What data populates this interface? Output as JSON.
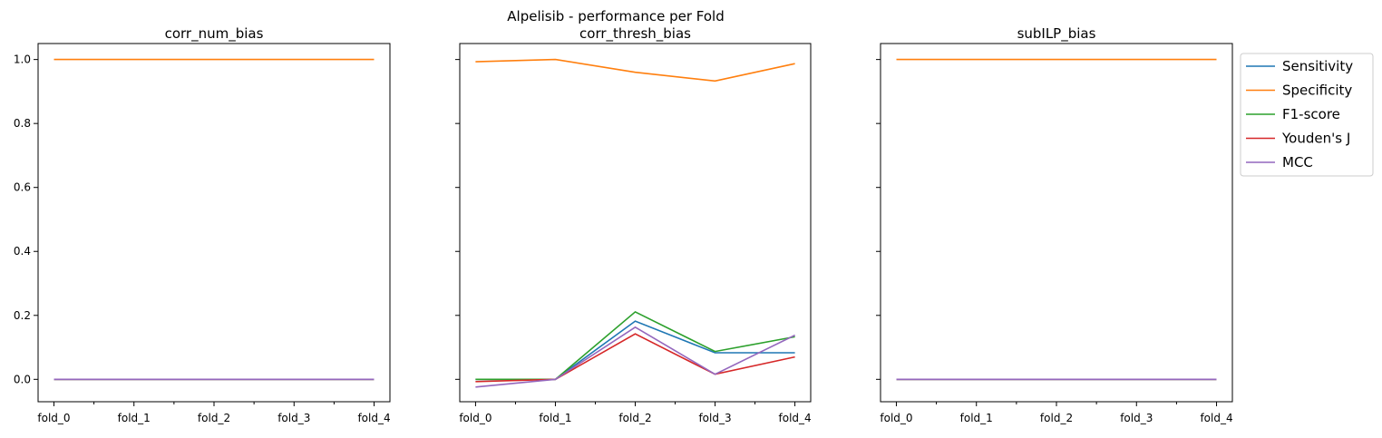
{
  "figure": {
    "title": "Alpelisib - performance per Fold"
  },
  "chart_data": [
    {
      "type": "line",
      "title": "corr_num_bias",
      "categories": [
        "fold_0",
        "fold_1",
        "fold_2",
        "fold_3",
        "fold_4"
      ],
      "y_ticks": [
        "0.0",
        "0.2",
        "0.4",
        "0.6",
        "0.8",
        "1.0"
      ],
      "ylim": [
        -0.07,
        1.05
      ],
      "grid": false,
      "series": [
        {
          "name": "Sensitivity",
          "color": "#1f77b4",
          "values": [
            0,
            0,
            0,
            0,
            0
          ]
        },
        {
          "name": "Specificity",
          "color": "#ff7f0e",
          "values": [
            1,
            1,
            1,
            1,
            1
          ]
        },
        {
          "name": "F1-score",
          "color": "#2ca02c",
          "values": [
            0,
            0,
            0,
            0,
            0
          ]
        },
        {
          "name": "Youden's J",
          "color": "#d62728",
          "values": [
            0,
            0,
            0,
            0,
            0
          ]
        },
        {
          "name": "MCC",
          "color": "#9467bd",
          "values": [
            0,
            0,
            0,
            0,
            0
          ]
        }
      ]
    },
    {
      "type": "line",
      "title": "corr_thresh_bias",
      "categories": [
        "fold_0",
        "fold_1",
        "fold_2",
        "fold_3",
        "fold_4"
      ],
      "ylim": [
        -0.07,
        1.05
      ],
      "grid": false,
      "series": [
        {
          "name": "Sensitivity",
          "color": "#1f77b4",
          "values": [
            0.0,
            0.0,
            0.182,
            0.083,
            0.083
          ]
        },
        {
          "name": "Specificity",
          "color": "#ff7f0e",
          "values": [
            0.993,
            1.0,
            0.96,
            0.933,
            0.987
          ]
        },
        {
          "name": "F1-score",
          "color": "#2ca02c",
          "values": [
            0.0,
            0.0,
            0.211,
            0.087,
            0.133
          ]
        },
        {
          "name": "Youden's J",
          "color": "#d62728",
          "values": [
            -0.007,
            0.0,
            0.142,
            0.016,
            0.07
          ]
        },
        {
          "name": "MCC",
          "color": "#9467bd",
          "values": [
            -0.024,
            0.0,
            0.163,
            0.016,
            0.138
          ]
        }
      ]
    },
    {
      "type": "line",
      "title": "subILP_bias",
      "categories": [
        "fold_0",
        "fold_1",
        "fold_2",
        "fold_3",
        "fold_4"
      ],
      "ylim": [
        -0.07,
        1.05
      ],
      "grid": false,
      "legend": "outside-right",
      "series": [
        {
          "name": "Sensitivity",
          "color": "#1f77b4",
          "values": [
            0,
            0,
            0,
            0,
            0
          ]
        },
        {
          "name": "Specificity",
          "color": "#ff7f0e",
          "values": [
            1,
            1,
            1,
            1,
            1
          ]
        },
        {
          "name": "F1-score",
          "color": "#2ca02c",
          "values": [
            0,
            0,
            0,
            0,
            0
          ]
        },
        {
          "name": "Youden's J",
          "color": "#d62728",
          "values": [
            0,
            0,
            0,
            0,
            0
          ]
        },
        {
          "name": "MCC",
          "color": "#9467bd",
          "values": [
            0,
            0,
            0,
            0,
            0
          ]
        }
      ]
    }
  ]
}
